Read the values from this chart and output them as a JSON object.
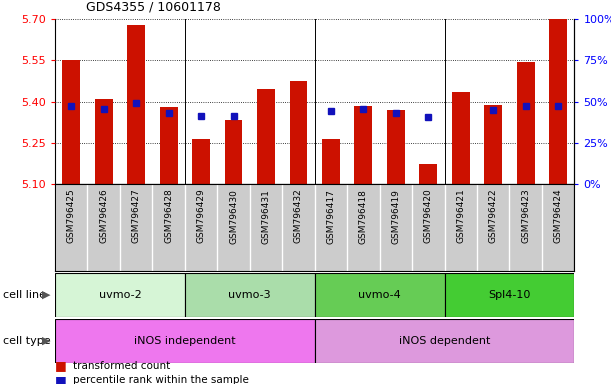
{
  "title": "GDS4355 / 10601178",
  "samples": [
    "GSM796425",
    "GSM796426",
    "GSM796427",
    "GSM796428",
    "GSM796429",
    "GSM796430",
    "GSM796431",
    "GSM796432",
    "GSM796417",
    "GSM796418",
    "GSM796419",
    "GSM796420",
    "GSM796421",
    "GSM796422",
    "GSM796423",
    "GSM796424"
  ],
  "red_values": [
    5.55,
    5.41,
    5.68,
    5.38,
    5.265,
    5.335,
    5.445,
    5.475,
    5.265,
    5.385,
    5.37,
    5.175,
    5.435,
    5.39,
    5.545,
    5.7
  ],
  "blue_values": [
    5.385,
    5.375,
    5.395,
    5.36,
    5.35,
    5.35,
    null,
    null,
    5.365,
    5.375,
    5.36,
    5.345,
    null,
    5.37,
    5.385,
    5.385
  ],
  "ymin": 5.1,
  "ymax": 5.7,
  "yticks": [
    5.1,
    5.25,
    5.4,
    5.55,
    5.7
  ],
  "right_yticks": [
    0,
    25,
    50,
    75,
    100
  ],
  "cell_line_groups": [
    {
      "label": "uvmo-2",
      "start": 0,
      "end": 3,
      "color": "#d6f5d6"
    },
    {
      "label": "uvmo-3",
      "start": 4,
      "end": 7,
      "color": "#aaddaa"
    },
    {
      "label": "uvmo-4",
      "start": 8,
      "end": 11,
      "color": "#66cc55"
    },
    {
      "label": "Spl4-10",
      "start": 12,
      "end": 15,
      "color": "#44cc33"
    }
  ],
  "cell_type_groups": [
    {
      "label": "iNOS independent",
      "start": 0,
      "end": 7,
      "color": "#ee77ee"
    },
    {
      "label": "iNOS dependent",
      "start": 8,
      "end": 15,
      "color": "#dd99dd"
    }
  ],
  "bar_color": "#cc1100",
  "blue_color": "#1111bb",
  "sample_box_color": "#cccccc",
  "bar_width": 0.55
}
